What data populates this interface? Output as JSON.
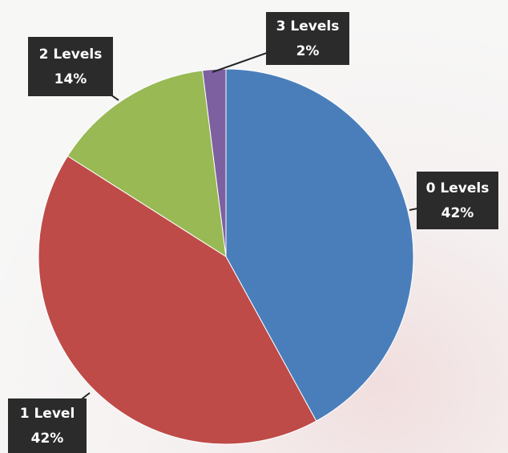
{
  "chart_data": {
    "type": "pie",
    "categories": [
      "0 Levels",
      "1 Level",
      "2 Levels",
      "3 Levels"
    ],
    "values": [
      42,
      42,
      14,
      2
    ],
    "value_labels": [
      "42%",
      "42%",
      "14%",
      "2%"
    ],
    "colors": [
      "#4a7ebb",
      "#be4b48",
      "#98b954",
      "#7d60a0"
    ]
  }
}
